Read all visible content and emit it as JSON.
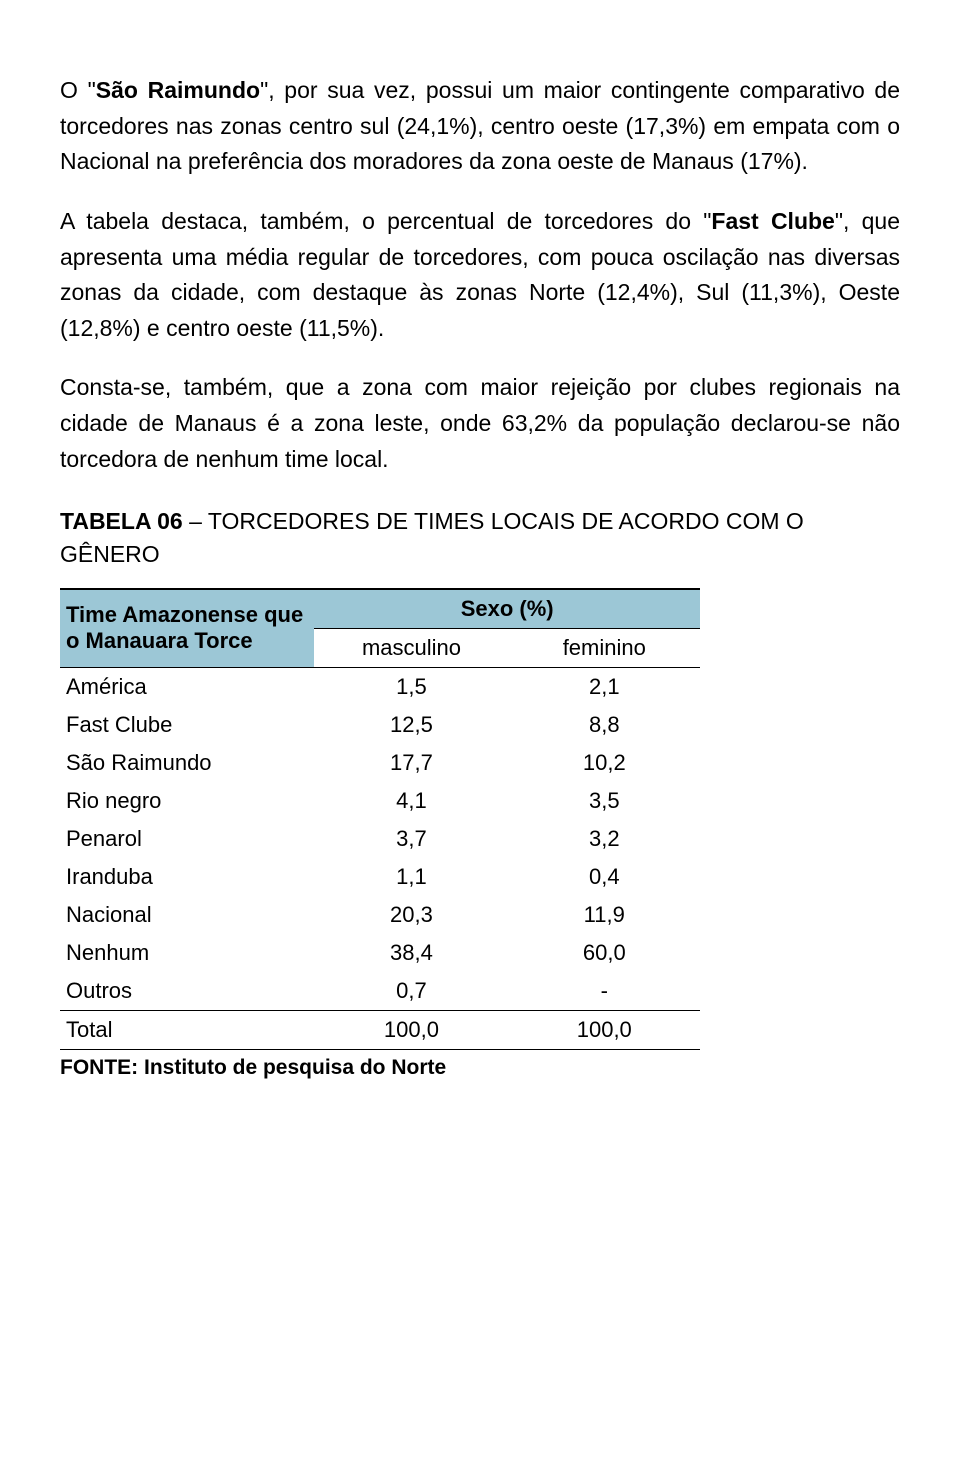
{
  "paragraphs": {
    "p1_a": "O \"",
    "p1_b": "São Raimundo",
    "p1_c": "\", por sua vez, possui um maior contingente comparativo de torcedores nas zonas centro sul (24,1%), centro oeste (17,3%) em empata com o Nacional na preferência dos moradores da zona oeste de Manaus (17%).",
    "p2_a": "A tabela destaca, também, o percentual de torcedores do \"",
    "p2_b": "Fast Clube",
    "p2_c": "\", que apresenta uma média regular  de torcedores, com pouca oscilação nas diversas zonas da cidade, com destaque às zonas Norte (12,4%), Sul (11,3%), Oeste (12,8%) e centro oeste (11,5%).",
    "p3": "Consta-se, também, que a zona com maior rejeição por clubes regionais na cidade de Manaus é a zona leste, onde 63,2% da população declarou-se não torcedora de nenhum time local.",
    "heading_a": "TABELA 06",
    "heading_b": " – TORCEDORES DE TIMES LOCAIS DE ACORDO COM O GÊNERO"
  },
  "table": {
    "header_rowlabel": "Time Amazonense que o Manauara Torce",
    "header_group": "Sexo (%)",
    "col_masc": "masculino",
    "col_fem": "feminino",
    "rows": [
      {
        "label": "América",
        "masc": "1,5",
        "fem": "2,1"
      },
      {
        "label": "Fast Clube",
        "masc": "12,5",
        "fem": "8,8"
      },
      {
        "label": "São Raimundo",
        "masc": "17,7",
        "fem": "10,2"
      },
      {
        "label": "Rio negro",
        "masc": "4,1",
        "fem": "3,5"
      },
      {
        "label": "Penarol",
        "masc": "3,7",
        "fem": "3,2"
      },
      {
        "label": "Iranduba",
        "masc": "1,1",
        "fem": "0,4"
      },
      {
        "label": "Nacional",
        "masc": "20,3",
        "fem": "11,9"
      },
      {
        "label": "Nenhum",
        "masc": "38,4",
        "fem": "60,0"
      },
      {
        "label": "Outros",
        "masc": "0,7",
        "fem": "-"
      }
    ],
    "total_label": "Total",
    "total_masc": "100,0",
    "total_fem": "100,0",
    "header_bg": "#9cc7d6",
    "border_color": "#000000"
  },
  "source": "FONTE: Instituto de pesquisa do Norte"
}
